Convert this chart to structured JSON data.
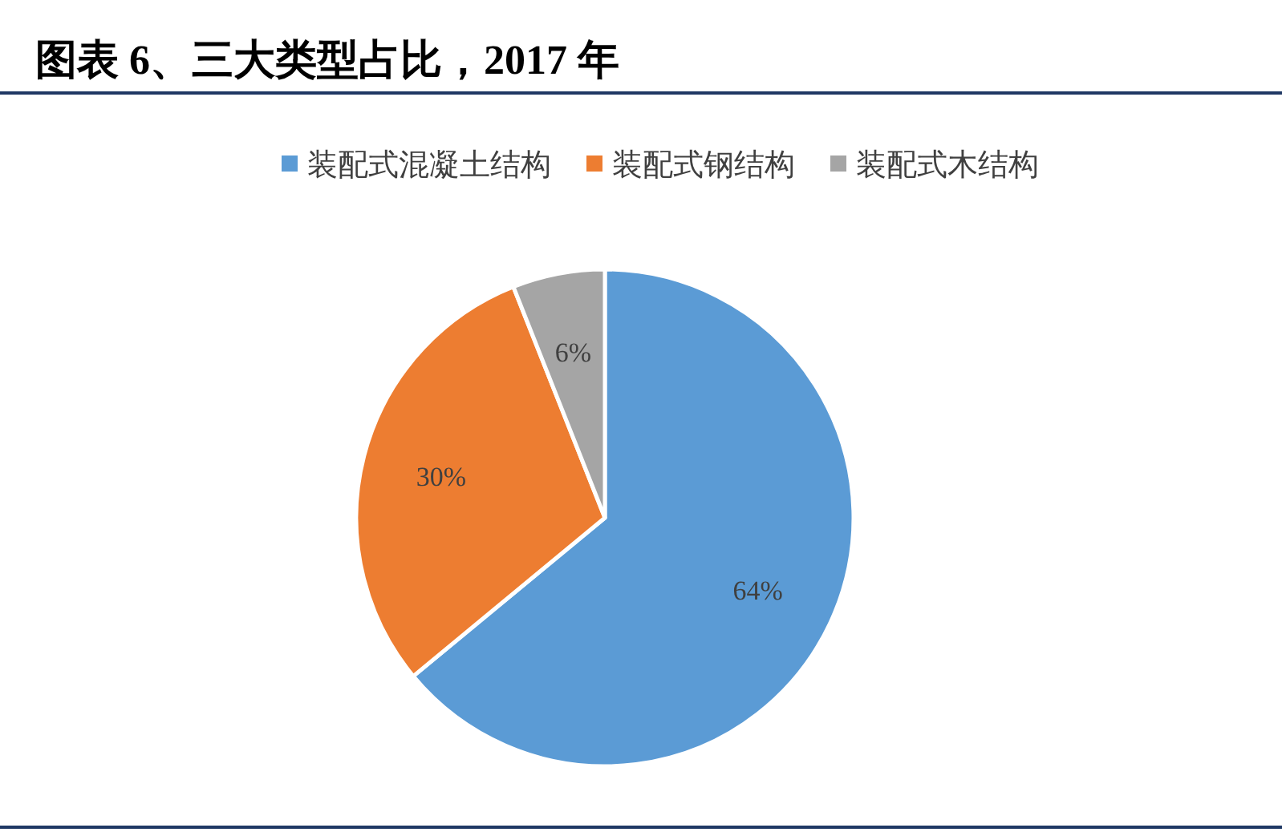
{
  "chart_data": {
    "type": "pie",
    "title": "图表 6、三大类型占比，2017 年",
    "categories": [
      "装配式混凝土结构",
      "装配式钢结构",
      "装配式木结构"
    ],
    "values": [
      64,
      30,
      6
    ],
    "colors": [
      "#5b9bd5",
      "#ed7d31",
      "#a5a5a5"
    ],
    "value_labels": [
      "64%",
      "30%",
      "6%"
    ],
    "legend": "top"
  }
}
